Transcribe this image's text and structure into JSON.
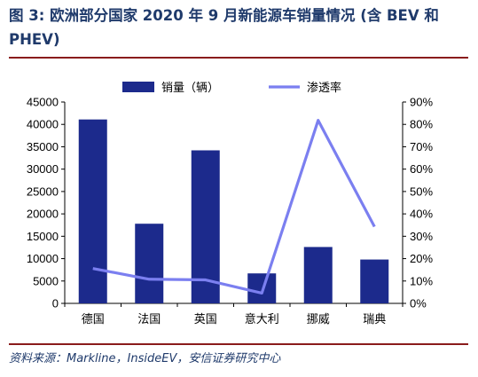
{
  "title": "图 3: 欧洲部分国家 2020 年 9 月新能源车销量情况 (含 BEV 和 PHEV)",
  "source": "资料来源：Markline，InsideEV，安信证券研究中心",
  "colors": {
    "bar": "#1c2a8c",
    "line": "#7b7ff0",
    "title": "#1f3a6b",
    "rule": "#8a1c1c"
  },
  "chart_data": {
    "type": "bar+line",
    "categories": [
      "德国",
      "法国",
      "英国",
      "意大利",
      "挪威",
      "瑞典"
    ],
    "series": [
      {
        "name": "销量（辆）",
        "type": "bar",
        "axis": "left",
        "values": [
          41100,
          17800,
          34200,
          6700,
          12600,
          9800
        ]
      },
      {
        "name": "渗透率",
        "type": "line",
        "axis": "right",
        "values": [
          0.156,
          0.108,
          0.105,
          0.046,
          0.818,
          0.343
        ]
      }
    ],
    "y_left": {
      "ylim": [
        0,
        45000
      ],
      "ticks": [
        "0",
        "5000",
        "10000",
        "15000",
        "20000",
        "25000",
        "30000",
        "35000",
        "40000",
        "45000"
      ]
    },
    "y_right": {
      "ylim": [
        0,
        0.9
      ],
      "ticks": [
        "0%",
        "10%",
        "20%",
        "30%",
        "40%",
        "50%",
        "60%",
        "70%",
        "80%",
        "90%"
      ]
    },
    "legend": {
      "position": "top",
      "items": [
        "销量（辆）",
        "渗透率"
      ]
    },
    "grid": false
  }
}
